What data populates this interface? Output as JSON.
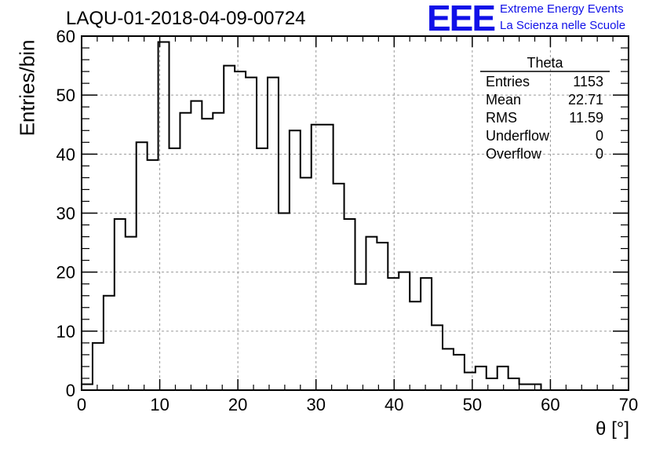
{
  "title": "LAQU-01-2018-04-09-00724",
  "logo": {
    "mark": "EEE",
    "line1": "Extreme Energy Events",
    "line2": "La Scienza nelle Scuole",
    "color": "#1010e8"
  },
  "stats_box": {
    "name": "Theta",
    "rows": [
      {
        "label": "Entries",
        "value": "1153"
      },
      {
        "label": "Mean",
        "value": "22.71"
      },
      {
        "label": "RMS",
        "value": "11.59"
      },
      {
        "label": "Underflow",
        "value": "0"
      },
      {
        "label": "Overflow",
        "value": "0"
      }
    ]
  },
  "chart_data": {
    "type": "bar",
    "style": "step histogram",
    "xlabel": "θ [°]",
    "ylabel": "Entries/bin",
    "xlim": [
      0,
      70
    ],
    "ylim": [
      0,
      60
    ],
    "bin_width": 1.4,
    "x_ticks": [
      0,
      10,
      20,
      30,
      40,
      50,
      60,
      70
    ],
    "y_ticks": [
      0,
      10,
      20,
      30,
      40,
      50,
      60
    ],
    "grid": true,
    "values": [
      1,
      8,
      16,
      29,
      26,
      42,
      39,
      59,
      41,
      47,
      49,
      46,
      47,
      55,
      54,
      53,
      41,
      53,
      30,
      44,
      36,
      45,
      45,
      35,
      29,
      18,
      26,
      25,
      19,
      20,
      15,
      19,
      11,
      7,
      6,
      3,
      4,
      2,
      4,
      2,
      1,
      1,
      0,
      0,
      0,
      0,
      0,
      0,
      0,
      0
    ]
  }
}
